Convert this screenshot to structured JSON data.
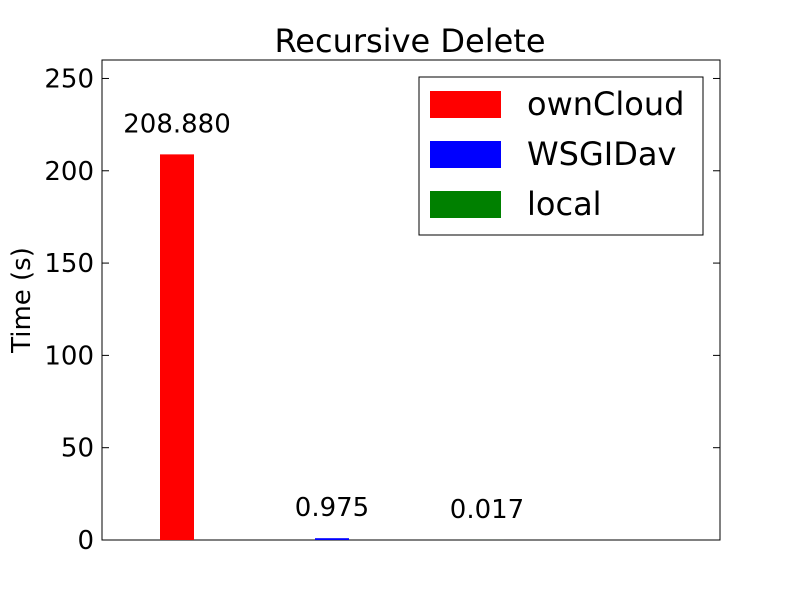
{
  "chart_data": {
    "type": "bar",
    "title": "Recursive Delete",
    "xlabel": "",
    "ylabel": "Time (s)",
    "ylim": [
      0,
      260
    ],
    "yticks": [
      0,
      50,
      100,
      150,
      200,
      250
    ],
    "grid": false,
    "legend_position": "top-right",
    "series": [
      {
        "name": "ownCloud",
        "value": 208.88,
        "label": "208.880",
        "color": "#ff0000"
      },
      {
        "name": "WSGIDav",
        "value": 0.975,
        "label": "0.975",
        "color": "#0000ff"
      },
      {
        "name": "local",
        "value": 0.017,
        "label": "0.017",
        "color": "#008000"
      }
    ]
  }
}
